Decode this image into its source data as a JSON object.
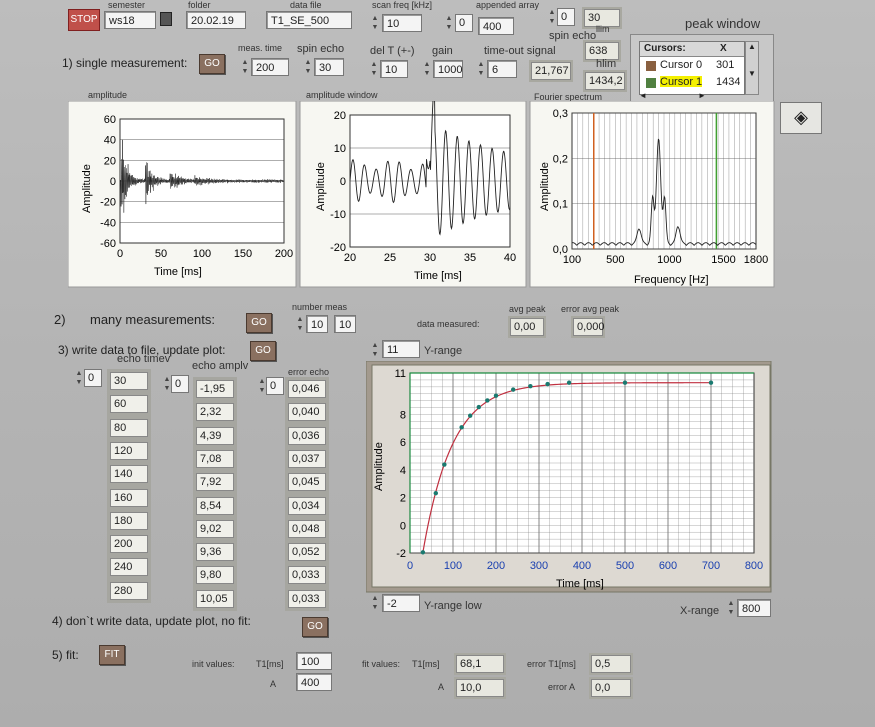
{
  "top": {
    "stop_label": "STOP",
    "semester_label": "semester",
    "semester_value": "ws18",
    "folder_label": "folder",
    "folder_value": "20.02.19",
    "datafile_label": "data file",
    "datafile_value": "T1_SE_500",
    "scanfreq_label": "scan freq [kHz]",
    "scanfreq_value": "10",
    "appended_label": "appended array",
    "appended_index": "0",
    "appended_value": "400",
    "topright_index": "0",
    "topright_value": "30",
    "peak_window_label": "peak window"
  },
  "single": {
    "title": "1) single measurement:",
    "go_label": "GO",
    "meas_time_label": "meas. time",
    "meas_time_value": "200",
    "spin_echo_label": "spin echo",
    "spin_echo_value": "30",
    "delT_label": "del T (+-)",
    "delT_value": "10",
    "gain_label": "gain",
    "gain_value": "1000",
    "timeout_label": "time-out signal",
    "timeout_value": "6",
    "result_value": "21,767",
    "spin_echo2_label": "spin echo",
    "llim_label": "llim",
    "llim_value": "638",
    "hlim_label": "hlim",
    "hlim_value": "1434,2"
  },
  "cursors": {
    "header_name": "Cursors:",
    "header_x": "X",
    "row0_name": "Cursor 0",
    "row0_x": "301",
    "row1_name": "Cursor 1",
    "row1_x": "1434"
  },
  "graphs": {
    "amplitude_title": "amplitude",
    "window_title": "amplitude window",
    "fourier_title": "Fourier spectrum",
    "amp_ylabel": "Amplitude",
    "amp_xlabel": "Time  [ms]",
    "win_ylabel": "Amplitude",
    "win_xlabel": "Time [ms]",
    "four_ylabel": "Amplitude",
    "four_xlabel": "Frequency [Hz]",
    "amp_yticks": [
      "60",
      "40",
      "20",
      "0",
      "-20",
      "-40",
      "-60"
    ],
    "amp_xticks": [
      "0",
      "50",
      "100",
      "150",
      "200"
    ],
    "win_yticks": [
      "20",
      "10",
      "0",
      "-10",
      "-20"
    ],
    "win_xticks": [
      "20",
      "25",
      "30",
      "35",
      "40"
    ],
    "four_yticks": [
      "0,3",
      "0,2",
      "0,1",
      "0,0"
    ],
    "four_xticks": [
      "100",
      "500",
      "1000",
      "1500",
      "1800"
    ]
  },
  "many": {
    "title": "many measurements:",
    "num": "2)",
    "go_label": "GO",
    "number_meas_label": "number meas",
    "number_meas_value": "10",
    "number_meas_value2": "10",
    "data_measured_label": "data measured:",
    "avg_peak_label": "avg peak",
    "avg_peak_value": "0,00",
    "err_avg_peak_label": "error avg peak",
    "err_avg_peak_value": "0,000"
  },
  "write": {
    "title": "3) write data to file, update plot:",
    "go_label": "GO",
    "echo_time_label": "echo timev",
    "echo_ampl_label": "echo amplv",
    "error_echo_label": "error echo",
    "idx1": "0",
    "idx2": "0",
    "idx3": "0",
    "echo_times": [
      "30",
      "60",
      "80",
      "120",
      "140",
      "160",
      "180",
      "200",
      "240",
      "280"
    ],
    "echo_ampls": [
      "-1,95",
      "2,32",
      "4,39",
      "7,08",
      "7,92",
      "8,54",
      "9,02",
      "9,36",
      "9,80",
      "10,05"
    ],
    "echo_errors": [
      "0,046",
      "0,040",
      "0,036",
      "0,037",
      "0,045",
      "0,034",
      "0,048",
      "0,052",
      "0,033",
      "0,033"
    ]
  },
  "fitplot": {
    "yrange_value": "11",
    "yrange_label": "Y-range",
    "yrangelow_value": "-2",
    "yrangelow_label": "Y-range low",
    "xrange_label": "X-range",
    "xrange_value": "800",
    "ylabel": "Amplitude",
    "xlabel": "Time [ms]",
    "yticks": [
      "11",
      "8",
      "6",
      "4",
      "2",
      "0",
      "-2"
    ],
    "xticks": [
      "0",
      "100",
      "200",
      "300",
      "400",
      "500",
      "600",
      "700",
      "800"
    ]
  },
  "nowrite": {
    "title": "4)  don`t write data, update plot, no fit:",
    "go_label": "GO"
  },
  "fit": {
    "title": "5)  fit:",
    "fit_label": "FIT",
    "init_values_label": "init values:",
    "t1_label": "T1[ms]",
    "a_label": "A",
    "init_t1": "100",
    "init_a": "400",
    "fit_values_label": "fit values:",
    "fit_t1_label": "T1[ms]",
    "fit_a_label": "A",
    "fit_t1": "68,1",
    "fit_a": "10,0",
    "err_t1_label": "error T1[ms]",
    "err_a_label": "error A",
    "err_t1": "0,5",
    "err_a": "0,0"
  },
  "chart_data": [
    {
      "type": "line",
      "title": "amplitude",
      "xlabel": "Time  [ms]",
      "ylabel": "Amplitude",
      "xlim": [
        0,
        200
      ],
      "ylim": [
        -60,
        60
      ],
      "description_series": "decaying spin echo signal, bursts near 0, 30, 60 ms"
    },
    {
      "type": "line",
      "title": "amplitude window",
      "xlabel": "Time [ms]",
      "ylabel": "Amplitude",
      "xlim": [
        20,
        40
      ],
      "ylim": [
        -20,
        20
      ]
    },
    {
      "type": "line",
      "title": "Fourier spectrum",
      "xlabel": "Frequency [Hz]",
      "ylabel": "Amplitude",
      "xlim": [
        100,
        1800
      ],
      "ylim": [
        0,
        0.3
      ],
      "cursors": [
        301,
        1434
      ],
      "peak": {
        "x": 900,
        "y": 0.23
      }
    },
    {
      "type": "scatter",
      "xlabel": "Time [ms]",
      "ylabel": "Amplitude",
      "xlim": [
        0,
        800
      ],
      "ylim": [
        -2,
        11
      ],
      "x": [
        30,
        60,
        80,
        120,
        140,
        160,
        180,
        200,
        240,
        280,
        320,
        370,
        500,
        700
      ],
      "y": [
        -1.95,
        2.32,
        4.39,
        7.08,
        7.92,
        8.54,
        9.02,
        9.36,
        9.8,
        10.05,
        10.2,
        10.3,
        10.3,
        10.3
      ]
    }
  ]
}
